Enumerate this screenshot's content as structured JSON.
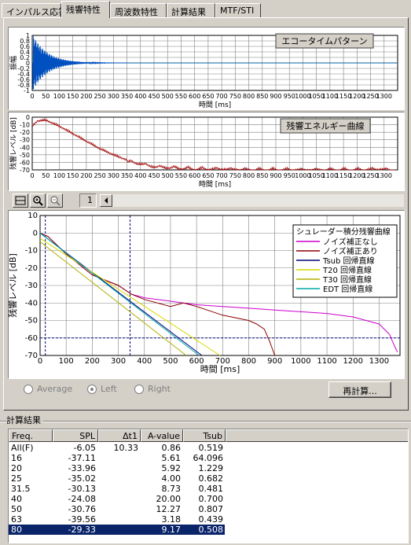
{
  "tabs": [
    "インパルス応答",
    "残響特性",
    "周波数特性",
    "計算結果",
    "MTF/STI"
  ],
  "active_tab": 1,
  "echo": {
    "caption": "エコータイムパターン",
    "ylabel": "振幅",
    "xlabel": "時間 [ms]",
    "x_ticks": [
      "0",
      "50",
      "100",
      "150",
      "200",
      "250",
      "300",
      "350",
      "400",
      "450",
      "500",
      "550",
      "600",
      "650",
      "700",
      "750",
      "800",
      "850",
      "900",
      "950",
      "1000",
      "1050",
      "1100",
      "1150",
      "1200",
      "1250",
      "1300"
    ],
    "y_ticks": [
      "1",
      "0.8",
      "0.6",
      "0.4",
      "0.2",
      "0",
      "-0.2",
      "-0.4",
      "-0.6",
      "-0.8",
      "-1"
    ]
  },
  "energy": {
    "caption": "残響エネルギー曲線",
    "ylabel": "残響レベル [dB]",
    "xlabel": "時間 [ms]",
    "x_ticks": [
      "0",
      "50",
      "100",
      "150",
      "200",
      "250",
      "300",
      "350",
      "400",
      "450",
      "500",
      "550",
      "600",
      "650",
      "700",
      "750",
      "800",
      "850",
      "900",
      "950",
      "1000",
      "1050",
      "1100",
      "1150",
      "1200",
      "1250",
      "1300"
    ],
    "y_ticks": [
      "0",
      "-10",
      "-20",
      "-30",
      "-40",
      "-50",
      "-60",
      "-70"
    ]
  },
  "toolbar": {
    "page": "1"
  },
  "decay": {
    "ylabel": "残響レベル [dB]",
    "xlabel": "時間 [ms]",
    "x_ticks": [
      "0",
      "100",
      "200",
      "300",
      "400",
      "500",
      "600",
      "700",
      "800",
      "900",
      "1000",
      "1100",
      "1200",
      "1300"
    ],
    "y_ticks": [
      "10",
      "0",
      "-10",
      "-20",
      "-30",
      "-40",
      "-50",
      "-60",
      "-70"
    ],
    "legend_title": "シュレーダー積分残響曲線",
    "legend": [
      {
        "label": "ノイズ補正なし",
        "color": "#cc00cc"
      },
      {
        "label": "ノイズ補正あり",
        "color": "#8b0000"
      },
      {
        "label": "Tsub 回帰直線",
        "color": "#00007f"
      },
      {
        "label": "T20 回帰直線",
        "color": "#d8d800"
      },
      {
        "label": "T30 回帰直線",
        "color": "#b0b000"
      },
      {
        "label": "EDT 回帰直線",
        "color": "#00a8a8"
      }
    ]
  },
  "chart_data": [
    {
      "type": "line",
      "title": "エコータイムパターン",
      "xlabel": "時間 [ms]",
      "ylabel": "振幅",
      "xlim": [
        0,
        1350
      ],
      "ylim": [
        -1,
        1
      ],
      "grid": true,
      "series": [
        {
          "x": [
            0,
            10,
            20,
            30,
            40,
            50,
            60,
            80,
            100,
            150,
            200,
            250,
            300,
            350,
            1350
          ],
          "values": [
            0,
            0.9,
            -0.9,
            0.8,
            -0.95,
            0.7,
            -0.6,
            0.45,
            -0.35,
            0.2,
            -0.1,
            0.06,
            -0.03,
            0,
            0
          ]
        }
      ]
    },
    {
      "type": "line",
      "title": "残響エネルギー曲線",
      "xlabel": "時間 [ms]",
      "ylabel": "残響レベル [dB]",
      "xlim": [
        0,
        1350
      ],
      "ylim": [
        -70,
        0
      ],
      "grid": true,
      "series": [
        {
          "x": [
            0,
            20,
            50,
            100,
            150,
            200,
            250,
            300,
            350,
            400,
            450,
            500,
            600,
            700,
            800,
            900,
            1000,
            1100,
            1200,
            1300,
            1340
          ],
          "values": [
            -10,
            -3,
            -2,
            -10,
            -20,
            -30,
            -40,
            -48,
            -55,
            -58,
            -62,
            -63,
            -65,
            -65,
            -66,
            -66,
            -66,
            -66,
            -66,
            -65,
            -68
          ]
        }
      ]
    },
    {
      "type": "line",
      "xlabel": "時間 [ms]",
      "ylabel": "残響レベル [dB]",
      "xlim": [
        0,
        1380
      ],
      "ylim": [
        -70,
        10
      ],
      "grid": true,
      "legend": "top-right",
      "series": [
        {
          "name": "ノイズ補正なし",
          "x": [
            0,
            30,
            100,
            200,
            300,
            350,
            400,
            500,
            600,
            700,
            800,
            900,
            1000,
            1100,
            1200,
            1300,
            1340,
            1360,
            1370
          ],
          "values": [
            0,
            -2,
            -12,
            -24,
            -30,
            -35,
            -37,
            -39,
            -41,
            -42,
            -43,
            -44,
            -45,
            -46,
            -48,
            -52,
            -58,
            -65,
            -68
          ]
        },
        {
          "name": "ノイズ補正あり",
          "x": [
            0,
            30,
            100,
            200,
            300,
            350,
            400,
            500,
            550,
            600,
            700,
            800,
            830,
            860,
            880,
            895,
            900
          ],
          "values": [
            0,
            -2,
            -12,
            -24,
            -30,
            -35,
            -38,
            -42,
            -40,
            -42,
            -47,
            -50,
            -52,
            -55,
            -62,
            -68,
            -70
          ]
        },
        {
          "name": "Tsub 回帰直線",
          "x": [
            0,
            620
          ],
          "values": [
            0,
            -70
          ]
        },
        {
          "name": "T20 回帰直線",
          "x": [
            0,
            690
          ],
          "values": [
            -3,
            -70
          ]
        },
        {
          "name": "T30 回帰直線",
          "x": [
            0,
            560
          ],
          "values": [
            -5,
            -70
          ]
        },
        {
          "name": "EDT 回帰直線",
          "x": [
            0,
            610
          ],
          "values": [
            0,
            -70
          ]
        }
      ]
    }
  ],
  "radios": [
    {
      "label": "Average",
      "selected": false
    },
    {
      "label": "Left",
      "selected": true
    },
    {
      "label": "Right",
      "selected": false
    }
  ],
  "recalc_label": "再計算...",
  "results_title": "計算結果",
  "results": {
    "columns": [
      "Freq.",
      "SPL",
      "Δt1",
      "A-value",
      "Tsub"
    ],
    "rows": [
      [
        "All(F)",
        "-6.05",
        "10.33",
        "0.86",
        "0.519"
      ],
      [
        "16",
        "-37.11",
        "",
        "5.61",
        "64.096"
      ],
      [
        "20",
        "-33.96",
        "",
        "5.92",
        "1.229"
      ],
      [
        "25",
        "-35.02",
        "",
        "4.00",
        "0.682"
      ],
      [
        "31.5",
        "-30.13",
        "",
        "8.73",
        "0.481"
      ],
      [
        "40",
        "-24.08",
        "",
        "20.00",
        "0.700"
      ],
      [
        "50",
        "-30.76",
        "",
        "12.27",
        "0.807"
      ],
      [
        "63",
        "-39.56",
        "",
        "3.18",
        "0.439"
      ],
      [
        "80",
        "-29.33",
        "",
        "9.17",
        "0.508"
      ]
    ],
    "selected_row": 8
  }
}
